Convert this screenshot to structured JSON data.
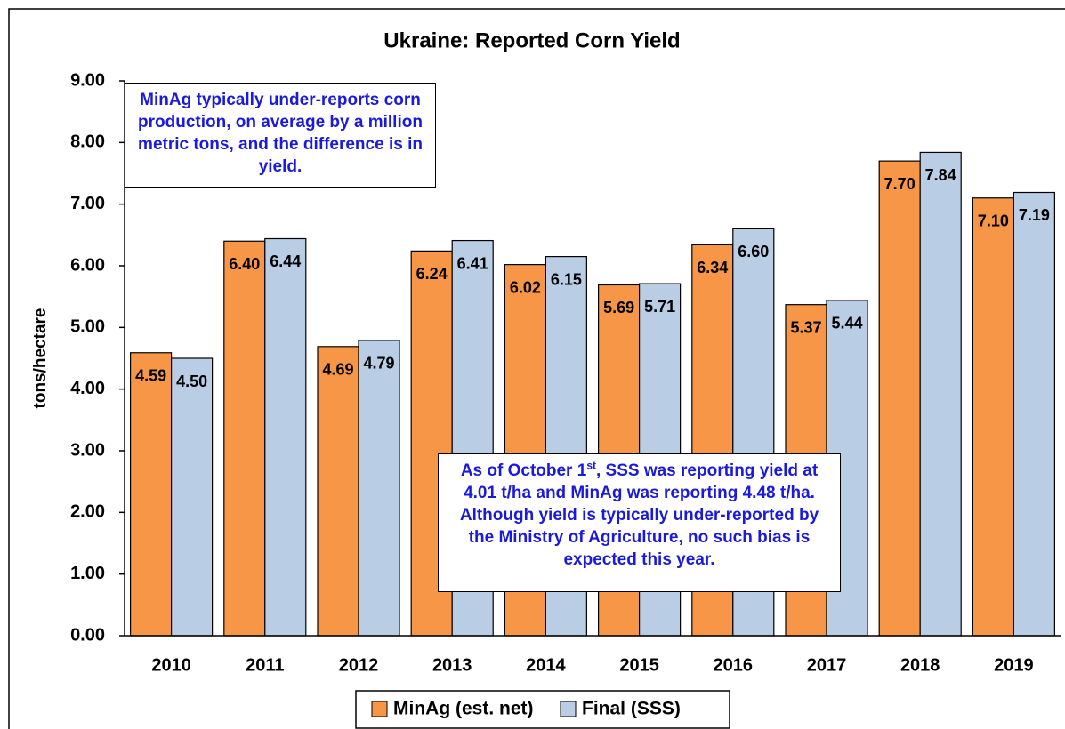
{
  "chart_data": {
    "type": "bar",
    "title": "Ukraine: Reported Corn Yield",
    "y_label": "tons/hectare",
    "categories": [
      "2010",
      "2011",
      "2012",
      "2013",
      "2014",
      "2015",
      "2016",
      "2017",
      "2018",
      "2019"
    ],
    "series": [
      {
        "name": "MinAg (est. net)",
        "color": "#f79646",
        "values": [
          4.59,
          6.4,
          4.69,
          6.24,
          6.02,
          5.69,
          6.34,
          5.37,
          7.7,
          7.1
        ],
        "value_labels": [
          "4.59",
          "6.40",
          "4.69",
          "6.24",
          "6.02",
          "5.69",
          "6.34",
          "5.37",
          "7.70",
          "7.10"
        ]
      },
      {
        "name": "Final (SSS)",
        "color": "#b9cde5",
        "values": [
          4.5,
          6.44,
          4.79,
          6.41,
          6.15,
          5.71,
          6.6,
          5.44,
          7.84,
          7.19
        ],
        "value_labels": [
          "4.50",
          "6.44",
          "4.79",
          "6.41",
          "6.15",
          "5.71",
          "6.60",
          "5.44",
          "7.84",
          "7.19"
        ]
      }
    ],
    "ylim": [
      0,
      9
    ],
    "yticks": [
      {
        "value": 0,
        "label": "0.00"
      },
      {
        "value": 1,
        "label": "1.00"
      },
      {
        "value": 2,
        "label": "2.00"
      },
      {
        "value": 3,
        "label": "3.00"
      },
      {
        "value": 4,
        "label": "4.00"
      },
      {
        "value": 5,
        "label": "5.00"
      },
      {
        "value": 6,
        "label": "6.00"
      },
      {
        "value": 7,
        "label": "7.00"
      },
      {
        "value": 8,
        "label": "8.00"
      },
      {
        "value": 9,
        "label": "9.00"
      }
    ],
    "grid": false,
    "legend": "bottom",
    "annotations": [
      {
        "parts": [
          "MinAg typically under-reports corn production, on average by a million metric tons, and the difference is in yield."
        ]
      },
      {
        "parts": [
          "As of October 1",
          "st",
          ", SSS was reporting yield at 4.01 t/ha and MinAg was reporting 4.48 t/ha. Although yield is typically under-reported by the Ministry of Agriculture, no such bias is expected this year."
        ]
      }
    ]
  }
}
